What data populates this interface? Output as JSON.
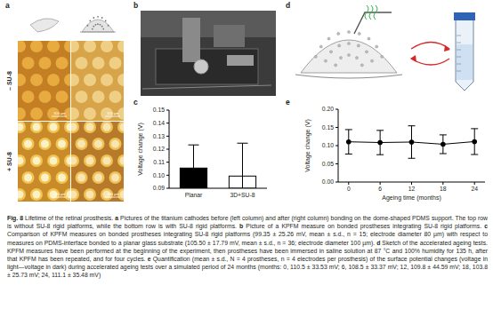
{
  "figure": {
    "panels": {
      "a": {
        "label": "a",
        "row_labels": [
          "– SU-8",
          "+ SU-8"
        ],
        "scale_bar": "300 μm"
      },
      "b": {
        "label": "b"
      },
      "c": {
        "label": "c"
      },
      "d": {
        "label": "d"
      },
      "e": {
        "label": "e"
      }
    },
    "caption": [
      {
        "text": "Fig. 8",
        "bold": true
      },
      {
        "text": " Lifetime of the retinal prosthesis. ",
        "bold": false
      },
      {
        "text": "a",
        "bold": true
      },
      {
        "text": " Pictures of the titanium cathodes before (left column) and after (right column) bonding on the dome-shaped PDMS support. The top row is without SU-8 rigid platforms, while the bottom row is with SU-8 rigid platforms. ",
        "bold": false
      },
      {
        "text": "b",
        "bold": true
      },
      {
        "text": " Picture of a KPFM measure on bonded prostheses integrating SU-8 rigid platforms. ",
        "bold": false
      },
      {
        "text": "c",
        "bold": true
      },
      {
        "text": " Comparison of KPFM measures on bonded prostheses integrating SU-8 rigid platforms (99.35 ± 25.26 mV, mean ± s.d., n = 15; electrode diameter 80 µm) with respect to measures on PDMS-interface bonded to a planar glass substrate (105.50 ± 17.79 mV, mean ± s.d., n = 36; electrode diameter 100 µm). ",
        "bold": false
      },
      {
        "text": "d",
        "bold": true
      },
      {
        "text": " Sketch of the accelerated ageing tests. KPFM measures have been performed at the beginning of the experiment, then prostheses have been immersed in saline solution at 87 °C and 100% humidity for 135 h, after that KPFM has been repeated, and for four cycles. ",
        "bold": false
      },
      {
        "text": "e",
        "bold": true
      },
      {
        "text": " Quantification (mean ± s.d., N = 4 prostheses, n = 4 electrodes per prosthesis) of the surface potential changes (voltage in light—voltage in dark) during accelerated ageing tests over a simulated period of 24 months (months: 0, 110.5 ± 33.53 mV; 6, 108.5 ± 33.37 mV; 12, 109.8 ± 44.59 mV; 18, 103.8 ± 25.73 mV; 24, 111.1 ± 35.48 mV)",
        "bold": false
      }
    ]
  },
  "chart_data": [
    {
      "type": "bar",
      "categories": [
        "Planar",
        "3D+SU-8"
      ],
      "values": [
        0.1055,
        0.09935
      ],
      "errors": [
        0.01779,
        0.02526
      ],
      "colors": [
        "#000000",
        "#ffffff"
      ],
      "y_label": "Voltage change (V)",
      "ylim": [
        0.09,
        0.15
      ],
      "yticks": [
        0.09,
        {
          "value": 0.1,
          "label": "0.10"
        },
        0.11,
        0.12,
        0.13,
        0.14,
        0.15
      ],
      "grid": false
    },
    {
      "type": "line",
      "x": [
        0,
        6,
        12,
        18,
        24
      ],
      "values": [
        0.1105,
        0.1085,
        0.1098,
        0.1038,
        0.1111
      ],
      "errors": [
        0.03353,
        0.03337,
        0.04459,
        0.02573,
        0.03548
      ],
      "color": "#000000",
      "marker": "circle",
      "x_label": "Ageing time (months)",
      "y_label": "Voltage change (V)",
      "xlim": [
        -2,
        26
      ],
      "xticks": [
        0,
        6,
        12,
        18,
        24
      ],
      "ylim": [
        0,
        0.2
      ],
      "yticks": [
        {
          "value": 0,
          "label": "0.00"
        },
        0.05,
        {
          "value": 0.1,
          "label": "0.10"
        },
        0.15,
        {
          "value": 0.2,
          "label": "0.20"
        }
      ],
      "grid": false
    }
  ]
}
